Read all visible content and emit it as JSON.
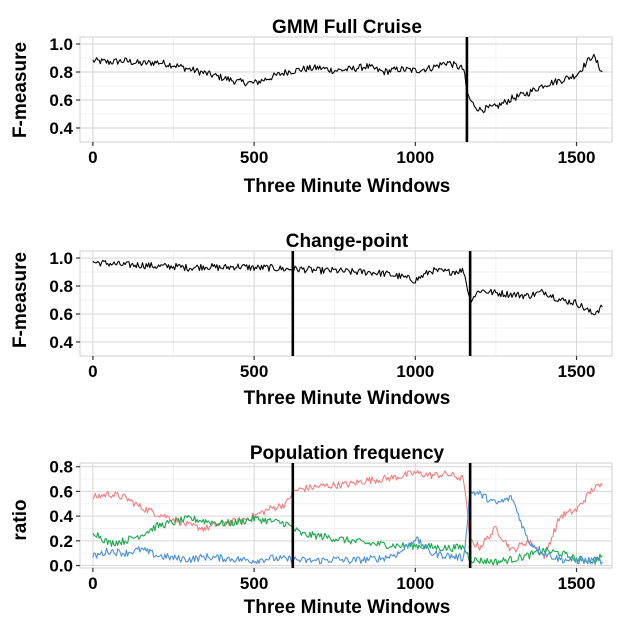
{
  "colors": {
    "black": "#000000",
    "red": "#f08080",
    "green": "#1aa84a",
    "blue": "#4a90d9"
  },
  "panels": [
    {
      "title": "GMM Full Cruise",
      "xlabel": "Three Minute Windows",
      "ylabel": "F-measure"
    },
    {
      "title": "Change-point",
      "xlabel": "Three Minute Windows",
      "ylabel": "F-measure"
    },
    {
      "title": "Population frequency",
      "xlabel": "Three Minute Windows",
      "ylabel": "ratio"
    }
  ],
  "chart_data": [
    {
      "type": "line",
      "title": "GMM Full Cruise",
      "xlabel": "Three Minute Windows",
      "ylabel": "F-measure",
      "xlim": [
        -40,
        1610
      ],
      "ylim": [
        0.3,
        1.05
      ],
      "xticks": [
        0,
        500,
        1000,
        1500
      ],
      "yticks": [
        0.4,
        0.6,
        0.8,
        1.0
      ],
      "ytick_labels": [
        "0.4",
        "0.6",
        "0.8",
        "1.0"
      ],
      "grid": true,
      "vlines": [
        1160
      ],
      "series": [
        {
          "color": "black",
          "x": [
            0,
            50,
            100,
            150,
            200,
            250,
            300,
            350,
            400,
            450,
            500,
            550,
            600,
            650,
            700,
            750,
            800,
            850,
            900,
            950,
            1000,
            1050,
            1100,
            1150,
            1160,
            1175,
            1200,
            1250,
            1300,
            1350,
            1400,
            1450,
            1500,
            1550,
            1580
          ],
          "values": [
            0.88,
            0.87,
            0.88,
            0.86,
            0.87,
            0.85,
            0.82,
            0.79,
            0.76,
            0.73,
            0.72,
            0.76,
            0.8,
            0.82,
            0.83,
            0.81,
            0.82,
            0.84,
            0.8,
            0.82,
            0.81,
            0.83,
            0.87,
            0.82,
            0.65,
            0.58,
            0.53,
            0.55,
            0.61,
            0.65,
            0.71,
            0.74,
            0.78,
            0.92,
            0.8
          ]
        }
      ]
    },
    {
      "type": "line",
      "title": "Change-point",
      "xlabel": "Three Minute Windows",
      "ylabel": "F-measure",
      "xlim": [
        -40,
        1610
      ],
      "ylim": [
        0.3,
        1.05
      ],
      "xticks": [
        0,
        500,
        1000,
        1500
      ],
      "yticks": [
        0.4,
        0.6,
        0.8,
        1.0
      ],
      "ytick_labels": [
        "0.4",
        "0.6",
        "0.8",
        "1.0"
      ],
      "grid": true,
      "vlines": [
        620,
        1170
      ],
      "series": [
        {
          "color": "black",
          "x": [
            0,
            50,
            100,
            150,
            200,
            250,
            300,
            350,
            400,
            450,
            500,
            550,
            600,
            650,
            700,
            750,
            800,
            850,
            900,
            950,
            1000,
            1050,
            1100,
            1150,
            1170,
            1200,
            1250,
            1300,
            1350,
            1400,
            1450,
            1500,
            1550,
            1580
          ],
          "values": [
            0.97,
            0.96,
            0.95,
            0.95,
            0.94,
            0.94,
            0.93,
            0.94,
            0.93,
            0.94,
            0.93,
            0.93,
            0.92,
            0.92,
            0.91,
            0.91,
            0.9,
            0.9,
            0.89,
            0.87,
            0.84,
            0.91,
            0.9,
            0.91,
            0.7,
            0.77,
            0.75,
            0.74,
            0.73,
            0.76,
            0.7,
            0.68,
            0.6,
            0.65
          ]
        }
      ]
    },
    {
      "type": "line",
      "title": "Population frequency",
      "xlabel": "Three Minute Windows",
      "ylabel": "ratio",
      "xlim": [
        -40,
        1610
      ],
      "ylim": [
        -0.02,
        0.83
      ],
      "xticks": [
        0,
        500,
        1000,
        1500
      ],
      "yticks": [
        0.0,
        0.2,
        0.4,
        0.6,
        0.8
      ],
      "ytick_labels": [
        "0.0",
        "0.2",
        "0.4",
        "0.6",
        "0.8"
      ],
      "grid": true,
      "vlines": [
        620,
        1170
      ],
      "series": [
        {
          "color": "red",
          "x": [
            0,
            50,
            100,
            150,
            200,
            250,
            300,
            350,
            400,
            450,
            500,
            550,
            600,
            620,
            650,
            700,
            750,
            800,
            850,
            900,
            950,
            1000,
            1050,
            1100,
            1150,
            1170,
            1200,
            1250,
            1300,
            1350,
            1400,
            1450,
            1500,
            1550,
            1580
          ],
          "values": [
            0.55,
            0.58,
            0.55,
            0.47,
            0.42,
            0.38,
            0.32,
            0.3,
            0.34,
            0.36,
            0.4,
            0.46,
            0.5,
            0.6,
            0.62,
            0.64,
            0.65,
            0.66,
            0.69,
            0.7,
            0.72,
            0.75,
            0.73,
            0.74,
            0.7,
            0.2,
            0.15,
            0.3,
            0.12,
            0.2,
            0.08,
            0.4,
            0.45,
            0.62,
            0.65
          ]
        },
        {
          "color": "green",
          "x": [
            0,
            50,
            100,
            150,
            200,
            250,
            300,
            350,
            400,
            450,
            500,
            550,
            600,
            620,
            650,
            700,
            750,
            800,
            850,
            900,
            950,
            1000,
            1050,
            1100,
            1150,
            1170,
            1200,
            1250,
            1300,
            1350,
            1400,
            1450,
            1500,
            1550,
            1580
          ],
          "values": [
            0.28,
            0.18,
            0.2,
            0.25,
            0.32,
            0.35,
            0.38,
            0.36,
            0.34,
            0.35,
            0.38,
            0.36,
            0.34,
            0.3,
            0.25,
            0.24,
            0.22,
            0.2,
            0.18,
            0.17,
            0.16,
            0.16,
            0.15,
            0.14,
            0.15,
            0.05,
            0.04,
            0.03,
            0.05,
            0.08,
            0.12,
            0.1,
            0.05,
            0.04,
            0.08
          ]
        },
        {
          "color": "blue",
          "x": [
            0,
            50,
            100,
            150,
            200,
            250,
            300,
            350,
            400,
            450,
            500,
            550,
            600,
            620,
            650,
            700,
            750,
            800,
            850,
            900,
            950,
            1000,
            1050,
            1100,
            1150,
            1170,
            1200,
            1250,
            1300,
            1350,
            1400,
            1450,
            1500,
            1550,
            1580
          ],
          "values": [
            0.07,
            0.12,
            0.1,
            0.13,
            0.08,
            0.06,
            0.05,
            0.07,
            0.06,
            0.05,
            0.04,
            0.06,
            0.05,
            0.05,
            0.04,
            0.04,
            0.05,
            0.04,
            0.05,
            0.06,
            0.1,
            0.22,
            0.1,
            0.08,
            0.06,
            0.6,
            0.58,
            0.5,
            0.55,
            0.2,
            0.1,
            0.05,
            0.04,
            0.04,
            0.03
          ]
        }
      ]
    }
  ]
}
